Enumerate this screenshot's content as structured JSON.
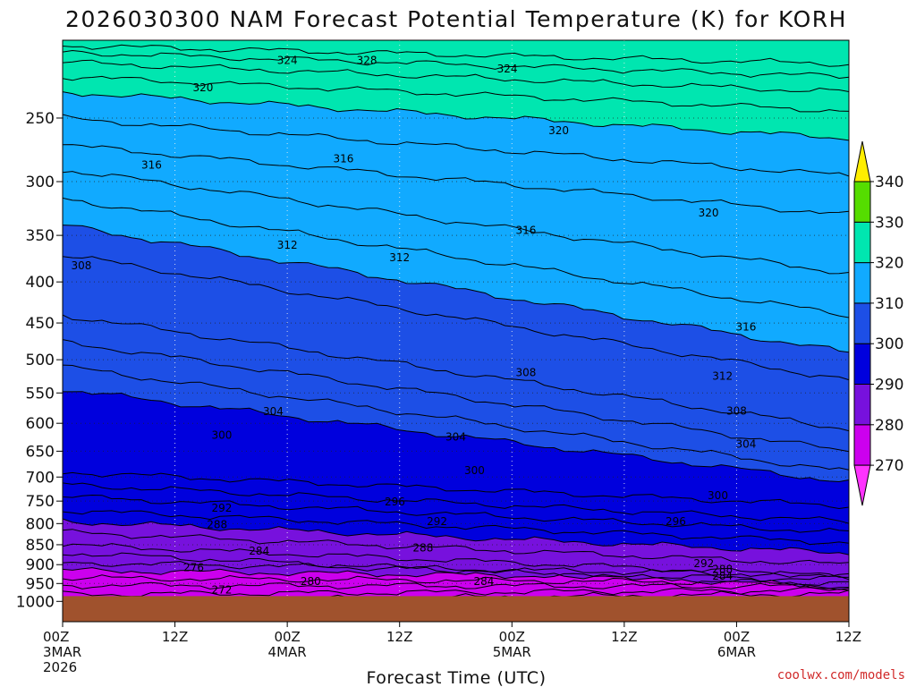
{
  "chart_data": {
    "type": "heatmap",
    "title": "2026030300 NAM Forecast Potential Temperature (K) for KORH",
    "xlabel": "Forecast Time (UTC)",
    "ylabel": "",
    "x_ticks": [
      {
        "hours": 0,
        "line1": "00Z",
        "line2": "3MAR",
        "line3": "2026"
      },
      {
        "hours": 12,
        "line1": "12Z",
        "line2": "",
        "line3": ""
      },
      {
        "hours": 24,
        "line1": "00Z",
        "line2": "4MAR",
        "line3": ""
      },
      {
        "hours": 36,
        "line1": "12Z",
        "line2": "",
        "line3": ""
      },
      {
        "hours": 48,
        "line1": "00Z",
        "line2": "5MAR",
        "line3": ""
      },
      {
        "hours": 60,
        "line1": "12Z",
        "line2": "",
        "line3": ""
      },
      {
        "hours": 72,
        "line1": "00Z",
        "line2": "6MAR",
        "line3": ""
      },
      {
        "hours": 84,
        "line1": "12Z",
        "line2": "",
        "line3": ""
      }
    ],
    "x_range_hours": [
      0,
      84
    ],
    "y_axis_pressure_hpa": [
      250,
      300,
      350,
      400,
      450,
      500,
      550,
      600,
      650,
      700,
      750,
      800,
      850,
      900,
      950,
      1000
    ],
    "y_range_hpa": [
      200,
      1060
    ],
    "ground_level_hpa": 985,
    "colorbar": {
      "ticks": [
        270,
        280,
        290,
        300,
        310,
        320,
        330,
        340
      ],
      "bands": [
        {
          "from": 265,
          "to": 270,
          "color": "#ff33ff"
        },
        {
          "from": 270,
          "to": 280,
          "color": "#cc00ee"
        },
        {
          "from": 280,
          "to": 290,
          "color": "#7711dd"
        },
        {
          "from": 290,
          "to": 300,
          "color": "#0000dd"
        },
        {
          "from": 300,
          "to": 310,
          "color": "#1d4fe6"
        },
        {
          "from": 310,
          "to": 320,
          "color": "#11aaff"
        },
        {
          "from": 320,
          "to": 330,
          "color": "#00e6b0"
        },
        {
          "from": 330,
          "to": 340,
          "color": "#55dd00"
        },
        {
          "from": 340,
          "to": 345,
          "color": "#ffee00"
        }
      ]
    },
    "contour_interval_k": 2,
    "contours_theta_k": [
      {
        "theta": 272,
        "p_start": 1000,
        "p_end": 978
      },
      {
        "theta": 274,
        "p_start": 980,
        "p_end": 968
      },
      {
        "theta": 276,
        "p_start": 955,
        "p_end": 958
      },
      {
        "theta": 278,
        "p_start": 935,
        "p_end": 948
      },
      {
        "theta": 280,
        "p_start": 915,
        "p_end": 938
      },
      {
        "theta": 282,
        "p_start": 895,
        "p_end": 928
      },
      {
        "theta": 284,
        "p_start": 870,
        "p_end": 960
      },
      {
        "theta": 286,
        "p_start": 850,
        "p_end": 930
      },
      {
        "theta": 288,
        "p_start": 820,
        "p_end": 900
      },
      {
        "theta": 290,
        "p_start": 795,
        "p_end": 870
      },
      {
        "theta": 292,
        "p_start": 770,
        "p_end": 845
      },
      {
        "theta": 294,
        "p_start": 740,
        "p_end": 820
      },
      {
        "theta": 296,
        "p_start": 715,
        "p_end": 795
      },
      {
        "theta": 298,
        "p_start": 690,
        "p_end": 760
      },
      {
        "theta": 300,
        "p_start": 545,
        "p_end": 710
      },
      {
        "theta": 302,
        "p_start": 510,
        "p_end": 690
      },
      {
        "theta": 304,
        "p_start": 475,
        "p_end": 650
      },
      {
        "theta": 306,
        "p_start": 440,
        "p_end": 610
      },
      {
        "theta": 308,
        "p_start": 370,
        "p_end": 530
      },
      {
        "theta": 310,
        "p_start": 340,
        "p_end": 490
      },
      {
        "theta": 312,
        "p_start": 315,
        "p_end": 440
      },
      {
        "theta": 314,
        "p_start": 290,
        "p_end": 390
      },
      {
        "theta": 316,
        "p_start": 270,
        "p_end": 330
      },
      {
        "theta": 318,
        "p_start": 250,
        "p_end": 295
      },
      {
        "theta": 320,
        "p_start": 232,
        "p_end": 265
      },
      {
        "theta": 322,
        "p_start": 222,
        "p_end": 245
      },
      {
        "theta": 324,
        "p_start": 213,
        "p_end": 232
      },
      {
        "theta": 326,
        "p_start": 207,
        "p_end": 222
      },
      {
        "theta": 328,
        "p_start": 203,
        "p_end": 214
      }
    ],
    "contour_labels": [
      {
        "text": "324",
        "h": 24.0,
        "p": 212
      },
      {
        "text": "328",
        "h": 32.5,
        "p": 212
      },
      {
        "text": "324",
        "h": 47.5,
        "p": 217
      },
      {
        "text": "320",
        "h": 15.0,
        "p": 229
      },
      {
        "text": "320",
        "h": 53.0,
        "p": 259
      },
      {
        "text": "316",
        "h": 9.5,
        "p": 286
      },
      {
        "text": "316",
        "h": 30.0,
        "p": 281
      },
      {
        "text": "320",
        "h": 69.0,
        "p": 328
      },
      {
        "text": "316",
        "h": 49.5,
        "p": 345
      },
      {
        "text": "312",
        "h": 24.0,
        "p": 360
      },
      {
        "text": "312",
        "h": 36.0,
        "p": 373
      },
      {
        "text": "308",
        "h": 2.0,
        "p": 382
      },
      {
        "text": "316",
        "h": 73.0,
        "p": 455
      },
      {
        "text": "308",
        "h": 49.5,
        "p": 519
      },
      {
        "text": "312",
        "h": 70.5,
        "p": 524
      },
      {
        "text": "304",
        "h": 22.5,
        "p": 580
      },
      {
        "text": "308",
        "h": 72.0,
        "p": 579
      },
      {
        "text": "300",
        "h": 17.0,
        "p": 621
      },
      {
        "text": "304",
        "h": 42.0,
        "p": 624
      },
      {
        "text": "304",
        "h": 73.0,
        "p": 637
      },
      {
        "text": "300",
        "h": 44.0,
        "p": 687
      },
      {
        "text": "300",
        "h": 70.0,
        "p": 738
      },
      {
        "text": "296",
        "h": 35.5,
        "p": 752
      },
      {
        "text": "292",
        "h": 17.0,
        "p": 765
      },
      {
        "text": "292",
        "h": 40.0,
        "p": 795
      },
      {
        "text": "296",
        "h": 65.5,
        "p": 795
      },
      {
        "text": "288",
        "h": 16.5,
        "p": 802
      },
      {
        "text": "284",
        "h": 21.0,
        "p": 865
      },
      {
        "text": "288",
        "h": 38.5,
        "p": 858
      },
      {
        "text": "292",
        "h": 68.5,
        "p": 897
      },
      {
        "text": "276",
        "h": 14.0,
        "p": 908
      },
      {
        "text": "288",
        "h": 70.5,
        "p": 912
      },
      {
        "text": "280",
        "h": 26.5,
        "p": 945
      },
      {
        "text": "284",
        "h": 45.0,
        "p": 945
      },
      {
        "text": "284",
        "h": 70.5,
        "p": 930
      },
      {
        "text": "272",
        "h": 17.0,
        "p": 968
      }
    ]
  },
  "credit": "coolwx.com/models"
}
